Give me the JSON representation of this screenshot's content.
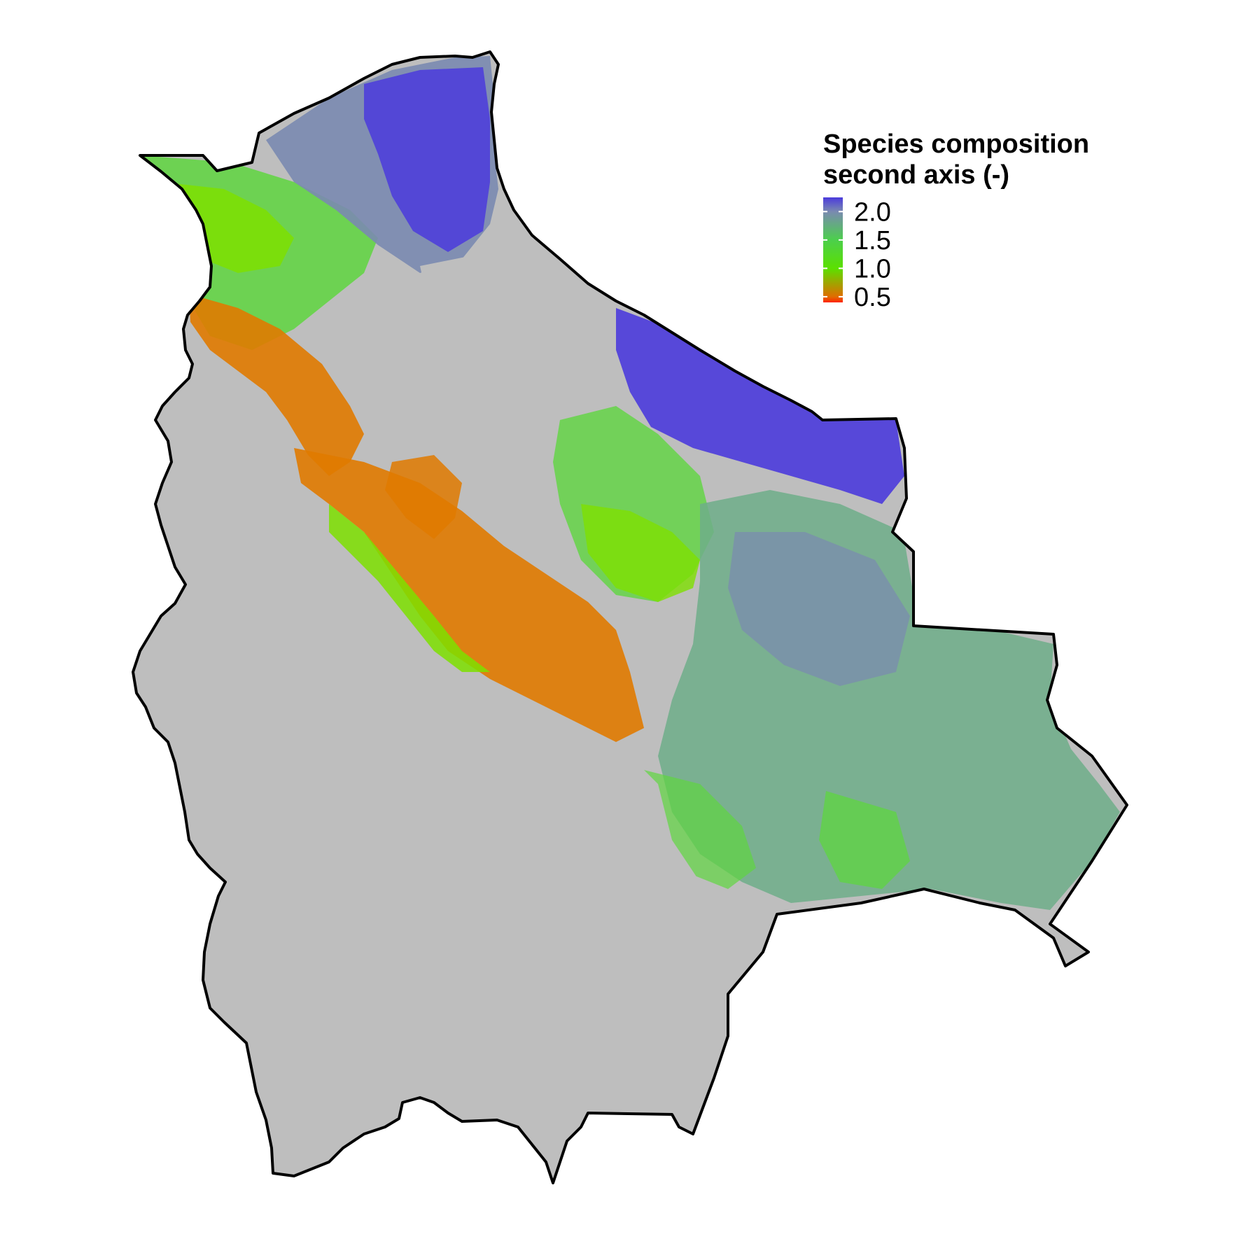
{
  "legend": {
    "title_line1": "Species composition",
    "title_line2": "second axis (-)",
    "ticks": [
      {
        "label": "2.0",
        "value": 2.0
      },
      {
        "label": "1.5",
        "value": 1.5
      },
      {
        "label": "1.0",
        "value": 1.0
      },
      {
        "label": "0.5",
        "value": 0.5
      }
    ],
    "value_range": [
      0.4,
      2.25
    ],
    "color_stops": [
      {
        "value": 2.25,
        "color": "#4b3bdc"
      },
      {
        "value": 2.0,
        "color": "#7a8ab0"
      },
      {
        "value": 1.5,
        "color": "#4ccf4c"
      },
      {
        "value": 1.0,
        "color": "#5be000"
      },
      {
        "value": 0.5,
        "color": "#e06d00"
      },
      {
        "value": 0.4,
        "color": "#ff2200"
      }
    ]
  },
  "colors": {
    "no_data": "#bebebe",
    "border": "#000000",
    "blue": "#4b3bdc",
    "slate": "#7a8ab0",
    "green_gray": "#6fae8a",
    "green": "#5fd640",
    "lime": "#7ee000",
    "orange": "#e07a00"
  }
}
